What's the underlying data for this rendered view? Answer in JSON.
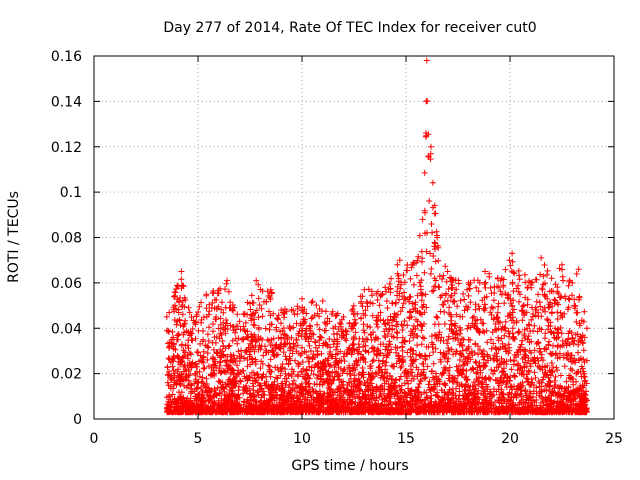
{
  "chart_data": {
    "type": "scatter",
    "title": "Day 277 of 2014, Rate Of TEC Index for receiver cut0",
    "xlabel": "GPS time / hours",
    "ylabel": "ROTI / TECUs",
    "xlim": [
      0,
      25
    ],
    "ylim": [
      0,
      0.16
    ],
    "xticks": [
      0,
      5,
      10,
      15,
      20,
      25
    ],
    "yticks": [
      0,
      0.02,
      0.04,
      0.06,
      0.08,
      0.1,
      0.12,
      0.14,
      0.16
    ],
    "xtick_labels": [
      "0",
      "5",
      "10",
      "15",
      "20",
      "25"
    ],
    "ytick_labels": [
      "0",
      "0.02",
      "0.04",
      "0.06",
      "0.08",
      "0.1",
      "0.12",
      "0.14",
      "0.16"
    ],
    "grid": true,
    "marker": "+",
    "marker_color": "#ff0000",
    "data_extent_hours": [
      3.5,
      23.7
    ],
    "envelope": [
      {
        "x": 3.5,
        "y": 0.045
      },
      {
        "x": 4.2,
        "y": 0.065
      },
      {
        "x": 4.6,
        "y": 0.047
      },
      {
        "x": 5.4,
        "y": 0.055
      },
      {
        "x": 6.4,
        "y": 0.061
      },
      {
        "x": 7.0,
        "y": 0.043
      },
      {
        "x": 7.8,
        "y": 0.061
      },
      {
        "x": 8.5,
        "y": 0.057
      },
      {
        "x": 9.0,
        "y": 0.048
      },
      {
        "x": 10.0,
        "y": 0.053
      },
      {
        "x": 11.0,
        "y": 0.052
      },
      {
        "x": 12.0,
        "y": 0.045
      },
      {
        "x": 13.0,
        "y": 0.057
      },
      {
        "x": 14.0,
        "y": 0.058
      },
      {
        "x": 14.7,
        "y": 0.07
      },
      {
        "x": 15.3,
        "y": 0.068
      },
      {
        "x": 15.8,
        "y": 0.088
      },
      {
        "x": 16.0,
        "y": 0.158
      },
      {
        "x": 16.2,
        "y": 0.12
      },
      {
        "x": 16.5,
        "y": 0.08
      },
      {
        "x": 17.0,
        "y": 0.065
      },
      {
        "x": 18.0,
        "y": 0.06
      },
      {
        "x": 18.8,
        "y": 0.065
      },
      {
        "x": 19.6,
        "y": 0.062
      },
      {
        "x": 20.1,
        "y": 0.073
      },
      {
        "x": 21.0,
        "y": 0.06
      },
      {
        "x": 21.5,
        "y": 0.071
      },
      {
        "x": 22.0,
        "y": 0.062
      },
      {
        "x": 22.5,
        "y": 0.068
      },
      {
        "x": 23.0,
        "y": 0.06
      },
      {
        "x": 23.3,
        "y": 0.066
      },
      {
        "x": 23.7,
        "y": 0.04
      }
    ],
    "baseline_min": 0.003
  }
}
